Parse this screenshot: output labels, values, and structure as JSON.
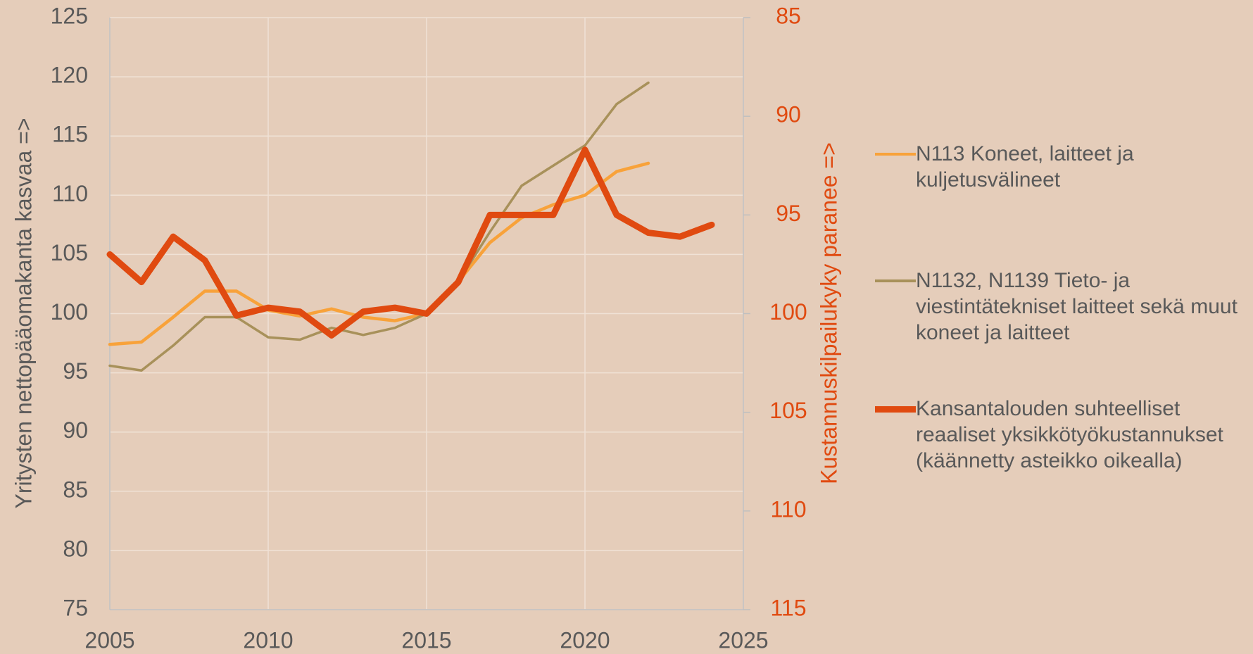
{
  "chart_data": {
    "type": "line",
    "y_label": "Yritysten nettopääomakanta kasvaa =>",
    "y2_label": "Kustannuskilpailukyky paranee =>",
    "x": [
      2005,
      2006,
      2007,
      2008,
      2009,
      2010,
      2011,
      2012,
      2013,
      2014,
      2015,
      2016,
      2017,
      2018,
      2019,
      2020,
      2021,
      2022,
      2023,
      2024
    ],
    "series": [
      {
        "name": "N113 Koneet, laitteet ja kuljetusvälineet",
        "color": "#f8a23a",
        "width": 4.5,
        "values": [
          97.4,
          97.6,
          99.7,
          101.9,
          101.9,
          100.3,
          99.8,
          100.4,
          99.7,
          99.4,
          100.0,
          102.7,
          106.0,
          108.1,
          109.2,
          110.0,
          112.0,
          112.7,
          null,
          null
        ]
      },
      {
        "name": "N1132, N1139 Tieto- ja viestintätekniset laitteet sekä muut koneet ja laitteet",
        "color": "#a8915a",
        "width": 3.5,
        "values": [
          95.6,
          95.2,
          97.3,
          99.7,
          99.7,
          98.0,
          97.8,
          98.8,
          98.2,
          98.8,
          100.0,
          102.7,
          106.9,
          110.8,
          112.5,
          114.2,
          117.7,
          119.5,
          null,
          null
        ]
      },
      {
        "name": "Kansantalouden suhteelliset reaaliset yksikkötyökustannukset (käännetty asteikko oikealla)",
        "color": "#e04a10",
        "width": 9,
        "axis": "y2",
        "values": [
          97.0,
          98.4,
          96.1,
          97.3,
          100.1,
          99.7,
          99.9,
          101.1,
          99.9,
          99.7,
          100.0,
          98.4,
          95.0,
          95.0,
          95.0,
          91.7,
          95.0,
          95.9,
          96.1,
          95.5
        ]
      }
    ],
    "xlim": [
      2005,
      2025
    ],
    "xticks": [
      2005,
      2010,
      2015,
      2020,
      2025
    ],
    "ylim": [
      75,
      125
    ],
    "yticks": [
      75,
      80,
      85,
      90,
      95,
      100,
      105,
      110,
      115,
      120,
      125
    ],
    "y2lim": [
      85,
      115
    ],
    "y2ticks": [
      85,
      90,
      95,
      100,
      105,
      110,
      115
    ],
    "y2_reversed": true,
    "y2_color": "#e04a10",
    "grid": true
  }
}
